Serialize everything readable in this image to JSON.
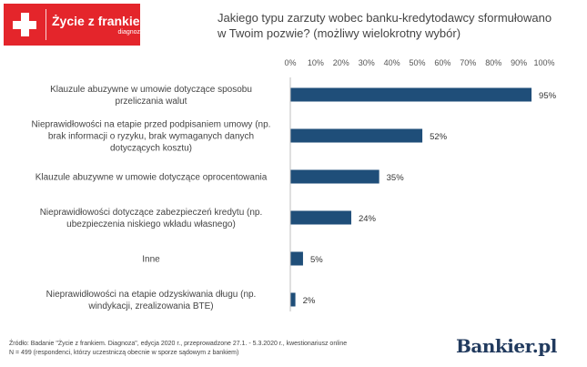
{
  "logo": {
    "name": "Życie z frankiem",
    "sub": "diagnoza"
  },
  "question": {
    "line1": "Jakiego typu zarzuty wobec banku-kredytodawcy sformułowano",
    "line2": "w Twoim pozwie? (możliwy wielokrotny wybór)"
  },
  "chart_data": {
    "type": "bar",
    "orientation": "horizontal",
    "categories": [
      [
        "Klauzule abuzywne w umowie dotyczące sposobu",
        "przeliczania walut"
      ],
      [
        "Nieprawidłowości na etapie przed podpisaniem umowy (np.",
        "brak informacji o ryzyku, brak wymaganych danych",
        "dotyczących kosztu)"
      ],
      [
        "Klauzule abuzywne w umowie dotyczące oprocentowania"
      ],
      [
        "Nieprawidłowości dotyczące zabezpieczeń kredytu (np.",
        "ubezpieczenia niskiego wkładu własnego)"
      ],
      [
        "Inne"
      ],
      [
        "Nieprawidłowości na etapie odzyskiwania długu (np.",
        "windykacji, zrealizowania BTE)"
      ]
    ],
    "values": [
      95,
      52,
      35,
      24,
      5,
      2
    ],
    "value_labels": [
      "95%",
      "52%",
      "35%",
      "24%",
      "5%",
      "2%"
    ],
    "xlim": [
      0,
      100
    ],
    "ticks": [
      "0%",
      "10%",
      "20%",
      "30%",
      "40%",
      "50%",
      "60%",
      "70%",
      "80%",
      "90%",
      "100%"
    ],
    "axis_position": "top",
    "grid": false,
    "bar_color": "#1f4e79"
  },
  "footer": {
    "line1": "Źródło: Badanie \"Życie z frankiem. Diagnoza\", edycja 2020 r., przeprowadzone 27.1. - 5.3.2020 r., kwestionariusz online",
    "line2": "N = 499 (respondenci, którzy uczestniczą obecnie w sporze sądowym z bankiem)"
  },
  "brand": "Bankier.pl"
}
